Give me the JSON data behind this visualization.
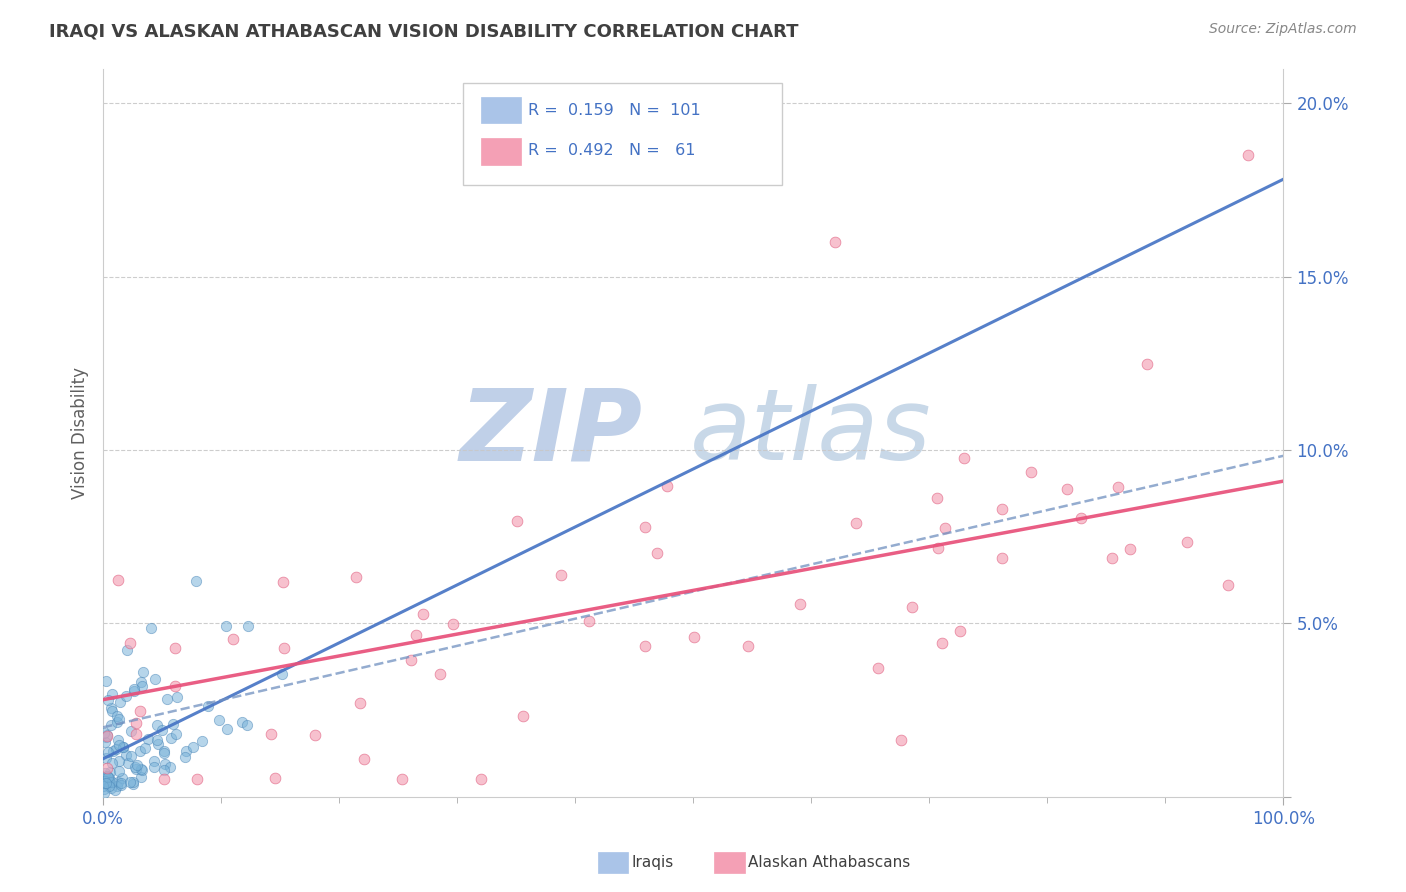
{
  "title": "IRAQI VS ALASKAN ATHABASCAN VISION DISABILITY CORRELATION CHART",
  "source": "Source: ZipAtlas.com",
  "ylabel": "Vision Disability",
  "xlim": [
    0.0,
    1.0
  ],
  "ylim": [
    0.0,
    0.21
  ],
  "ytick_vals": [
    0.0,
    0.05,
    0.1,
    0.15,
    0.2
  ],
  "ytick_labels": [
    "",
    "5.0%",
    "10.0%",
    "15.0%",
    "20.0%"
  ],
  "xtick_vals": [
    0.0,
    1.0
  ],
  "xtick_labels": [
    "0.0%",
    "100.0%"
  ],
  "minor_xticks": [
    0.1,
    0.2,
    0.3,
    0.4,
    0.5,
    0.6,
    0.7,
    0.8,
    0.9
  ],
  "iraqis_color": "#7ab3d9",
  "iraqis_edge_color": "#4a86b8",
  "athabascan_color": "#f4a0b5",
  "athabascan_edge_color": "#e06080",
  "iraq_line_color": "#4472c4",
  "ath_line_color": "#e8507a",
  "background_color": "#ffffff",
  "grid_color": "#c8c8c8",
  "axis_tick_color": "#4472c4",
  "title_color": "#404040",
  "source_color": "#888888",
  "ylabel_color": "#606060",
  "watermark_zip_color": "#c0d0e8",
  "watermark_atlas_color": "#c8d8e8",
  "legend_border_color": "#cccccc",
  "legend_text_color": "#4472c4",
  "bottom_legend_text_color": "#404040",
  "iraqis_seed": 42,
  "athabascan_seed": 7
}
